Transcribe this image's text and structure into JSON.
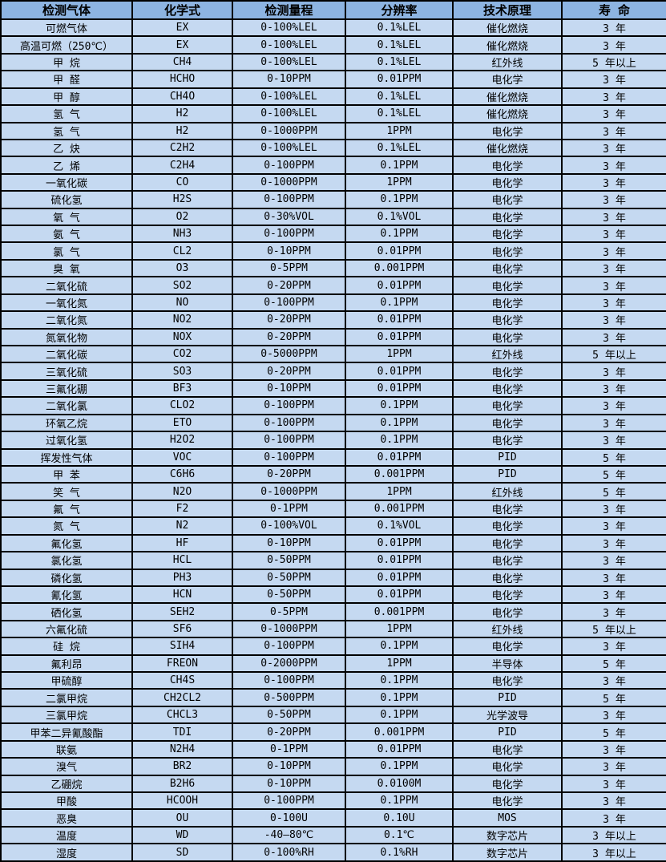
{
  "colors": {
    "header_bg": "#8DB4E2",
    "row_bg": "#C5D9F1",
    "border": "#000000",
    "text": "#000000"
  },
  "table": {
    "columns": {
      "gas": "检测气体",
      "formula": "化学式",
      "range": "检测量程",
      "resolution": "分辨率",
      "principle": "技术原理",
      "lifespan": "寿 命"
    },
    "rows": [
      [
        "可燃气体",
        "EX",
        "0-100%LEL",
        "0.1%LEL",
        "催化燃烧",
        "3 年"
      ],
      [
        "高温可燃（250℃）",
        "EX",
        "0-100%LEL",
        "0.1%LEL",
        "催化燃烧",
        "3 年"
      ],
      [
        "甲 烷",
        "CH4",
        "0-100%LEL",
        "0.1%LEL",
        "红外线",
        "5 年以上"
      ],
      [
        "甲 醛",
        "HCHO",
        "0-10PPM",
        "0.01PPM",
        "电化学",
        "3 年"
      ],
      [
        "甲 醇",
        "CH4O",
        "0-100%LEL",
        "0.1%LEL",
        "催化燃烧",
        "3 年"
      ],
      [
        "氢 气",
        "H2",
        "0-100%LEL",
        "0.1%LEL",
        "催化燃烧",
        "3 年"
      ],
      [
        "氢 气",
        "H2",
        "0-1000PPM",
        "1PPM",
        "电化学",
        "3 年"
      ],
      [
        "乙 炔",
        "C2H2",
        "0-100%LEL",
        "0.1%LEL",
        "催化燃烧",
        "3 年"
      ],
      [
        "乙 烯",
        "C2H4",
        "0-100PPM",
        "0.1PPM",
        "电化学",
        "3 年"
      ],
      [
        "一氧化碳",
        "CO",
        "0-1000PPM",
        "1PPM",
        "电化学",
        "3 年"
      ],
      [
        "硫化氢",
        "H2S",
        "0-100PPM",
        "0.1PPM",
        "电化学",
        "3 年"
      ],
      [
        "氧 气",
        "O2",
        "0-30%VOL",
        "0.1%VOL",
        "电化学",
        "3 年"
      ],
      [
        "氨 气",
        "NH3",
        "0-100PPM",
        "0.1PPM",
        "电化学",
        "3 年"
      ],
      [
        "氯 气",
        "CL2",
        "0-10PPM",
        "0.01PPM",
        "电化学",
        "3 年"
      ],
      [
        "臭 氧",
        "O3",
        "0-5PPM",
        "0.001PPM",
        "电化学",
        "3 年"
      ],
      [
        "二氧化硫",
        "SO2",
        "0-20PPM",
        "0.01PPM",
        "电化学",
        "3 年"
      ],
      [
        "一氧化氮",
        "NO",
        "0-100PPM",
        "0.1PPM",
        "电化学",
        "3 年"
      ],
      [
        "二氧化氮",
        "NO2",
        "0-20PPM",
        "0.01PPM",
        "电化学",
        "3 年"
      ],
      [
        "氮氧化物",
        "NOX",
        "0-20PPM",
        "0.01PPM",
        "电化学",
        "3 年"
      ],
      [
        "二氧化碳",
        "CO2",
        "0-5000PPM",
        "1PPM",
        "红外线",
        "5 年以上"
      ],
      [
        "三氧化硫",
        "SO3",
        "0-20PPM",
        "0.01PPM",
        "电化学",
        "3 年"
      ],
      [
        "三氟化硼",
        "BF3",
        "0-10PPM",
        "0.01PPM",
        "电化学",
        "3 年"
      ],
      [
        "二氧化氯",
        "CLO2",
        "0-100PPM",
        "0.1PPM",
        "电化学",
        "3 年"
      ],
      [
        "环氧乙烷",
        "ETO",
        "0-100PPM",
        "0.1PPM",
        "电化学",
        "3 年"
      ],
      [
        "过氧化氢",
        "H2O2",
        "0-100PPM",
        "0.1PPM",
        "电化学",
        "3 年"
      ],
      [
        "挥发性气体",
        "VOC",
        "0-100PPM",
        "0.01PPM",
        "PID",
        "5 年"
      ],
      [
        "甲 苯",
        "C6H6",
        "0-20PPM",
        "0.001PPM",
        "PID",
        "5 年"
      ],
      [
        "笑 气",
        "N2O",
        "0-1000PPM",
        "1PPM",
        "红外线",
        "5 年"
      ],
      [
        "氟 气",
        "F2",
        "0-1PPM",
        "0.001PPM",
        "电化学",
        "3 年"
      ],
      [
        "氮 气",
        "N2",
        "0-100%VOL",
        "0.1%VOL",
        "电化学",
        "3 年"
      ],
      [
        "氟化氢",
        "HF",
        "0-10PPM",
        "0.01PPM",
        "电化学",
        "3 年"
      ],
      [
        "氯化氢",
        "HCL",
        "0-50PPM",
        "0.01PPM",
        "电化学",
        "3 年"
      ],
      [
        "磷化氢",
        "PH3",
        "0-50PPM",
        "0.01PPM",
        "电化学",
        "3 年"
      ],
      [
        "氰化氢",
        "HCN",
        "0-50PPM",
        "0.01PPM",
        "电化学",
        "3 年"
      ],
      [
        "硒化氢",
        "SEH2",
        "0-5PPM",
        "0.001PPM",
        "电化学",
        "3 年"
      ],
      [
        "六氟化硫",
        "SF6",
        "0-1000PPM",
        "1PPM",
        "红外线",
        "5 年以上"
      ],
      [
        "硅 烷",
        "SIH4",
        "0-100PPM",
        "0.1PPM",
        "电化学",
        "3 年"
      ],
      [
        "氟利昂",
        "FREON",
        "0-2000PPM",
        "1PPM",
        "半导体",
        "5 年"
      ],
      [
        "甲硫醇",
        "CH4S",
        "0-100PPM",
        "0.1PPM",
        "电化学",
        "3 年"
      ],
      [
        "二氯甲烷",
        "CH2CL2",
        "0-500PPM",
        "0.1PPM",
        "PID",
        "5 年"
      ],
      [
        "三氯甲烷",
        "CHCL3",
        "0-50PPM",
        "0.1PPM",
        "光学波导",
        "3 年"
      ],
      [
        "甲苯二异氰酸酯",
        "TDI",
        "0-20PPM",
        "0.001PPM",
        "PID",
        "5 年"
      ],
      [
        "联氨",
        "N2H4",
        "0-1PPM",
        "0.01PPM",
        "电化学",
        "3 年"
      ],
      [
        "溴气",
        "BR2",
        "0-10PPM",
        "0.1PPM",
        "电化学",
        "3 年"
      ],
      [
        "乙硼烷",
        "B2H6",
        "0-10PPM",
        "0.0100M",
        "电化学",
        "3 年"
      ],
      [
        "甲酸",
        "HCOOH",
        "0-100PPM",
        "0.1PPM",
        "电化学",
        "3 年"
      ],
      [
        "恶臭",
        "OU",
        "0-100U",
        "0.10U",
        "MOS",
        "3 年"
      ],
      [
        "温度",
        "WD",
        "-40—80℃",
        "0.1℃",
        "数字芯片",
        "3 年以上"
      ],
      [
        "湿度",
        "SD",
        "0-100%RH",
        "0.1%RH",
        "数字芯片",
        "3 年以上"
      ]
    ]
  }
}
